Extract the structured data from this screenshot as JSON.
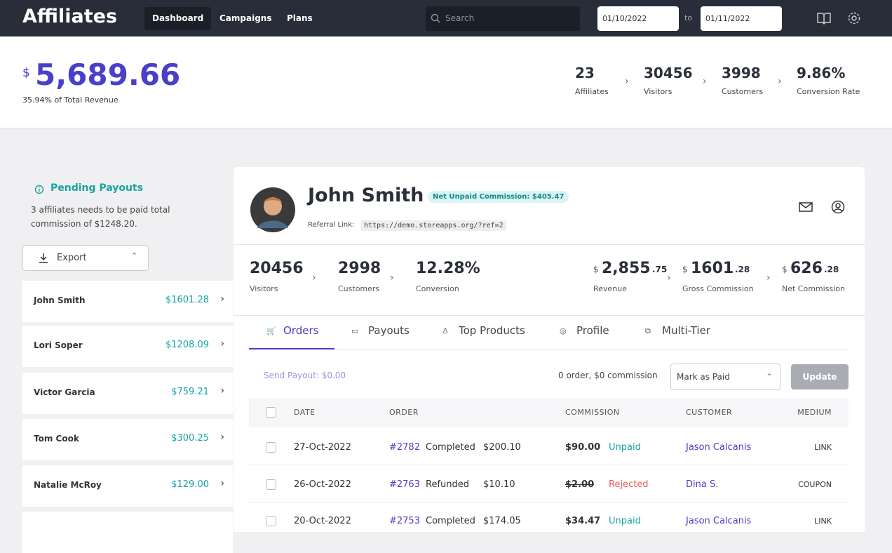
{
  "nav": {
    "brand": "Affiliates",
    "tabs": [
      "Dashboard",
      "Campaigns",
      "Plans"
    ],
    "search": "Search",
    "date_from": "01/10/2022",
    "date_sep": "to",
    "date_to": "01/11/2022"
  },
  "summary": {
    "currency": "$",
    "total": "5,689.66",
    "share": "35.94% of Total Revenue",
    "stats": [
      {
        "value": "23",
        "label": "Affiliates"
      },
      {
        "value": "30456",
        "label": "Visitors"
      },
      {
        "value": "3998",
        "label": "Customers"
      },
      {
        "value": "9.86%",
        "label": "Conversion Rate"
      }
    ]
  },
  "pending": {
    "title": "Pending Payouts",
    "text_1": "3 affiliates needs to be paid total",
    "text_2": "commission of $1248.20.",
    "export": "Export"
  },
  "affiliates": [
    {
      "name": "John Smith",
      "amount": "$1601.28"
    },
    {
      "name": "Lori Soper",
      "amount": "$1208.09"
    },
    {
      "name": "Victor Garcia",
      "amount": "$759.21"
    },
    {
      "name": "Tom Cook",
      "amount": "$300.25"
    },
    {
      "name": "Natalie McRoy",
      "amount": "$129.00"
    }
  ],
  "profile": {
    "name": "John Smith",
    "badge": "Net Unpaid Commission: $405.47",
    "ref_label": "Referral Link:",
    "ref_url": "https://demo.storeapps.org/?ref=2"
  },
  "kpis": [
    {
      "value": "20456",
      "label": "Visitors"
    },
    {
      "value": "2998",
      "label": "Customers"
    },
    {
      "value": "12.28%",
      "label": "Conversion"
    }
  ],
  "money_kpis": [
    {
      "currency": "$",
      "whole": "2,855",
      "cents": ".75",
      "label": "Revenue"
    },
    {
      "currency": "$",
      "whole": "1601",
      "cents": ".28",
      "label": "Gross Commission"
    },
    {
      "currency": "$",
      "whole": "626",
      "cents": ".28",
      "label": "Net Commission"
    }
  ],
  "tabs": [
    "Orders",
    "Payouts",
    "Top Products",
    "Profile",
    "Multi-Tier"
  ],
  "actions": {
    "send_payout": "Send Payout: $0.00",
    "summary": "0 order, $0 commission",
    "select": "Mark as Paid",
    "button": "Update"
  },
  "table": {
    "columns": [
      "DATE",
      "ORDER",
      "COMMISSION",
      "CUSTOMER",
      "MEDIUM"
    ],
    "rows": [
      {
        "date": "27-Oct-2022",
        "order": "#2782",
        "status": "Completed",
        "amount": "$200.10",
        "commission": "$90.00",
        "commission_status": "Unpaid",
        "customer": "Jason Calcanis",
        "medium": "LINK"
      },
      {
        "date": "26-Oct-2022",
        "order": "#2763",
        "status": "Refunded",
        "amount": "$10.10",
        "commission": "$2.00",
        "commission_status": "Rejected",
        "customer": "Dina S.",
        "medium": "COUPON"
      },
      {
        "date": "20-Oct-2022",
        "order": "#2753",
        "status": "Completed",
        "amount": "$174.05",
        "commission": "$34.47",
        "commission_status": "Unpaid",
        "customer": "Jason Calcanis",
        "medium": "LINK"
      }
    ]
  }
}
